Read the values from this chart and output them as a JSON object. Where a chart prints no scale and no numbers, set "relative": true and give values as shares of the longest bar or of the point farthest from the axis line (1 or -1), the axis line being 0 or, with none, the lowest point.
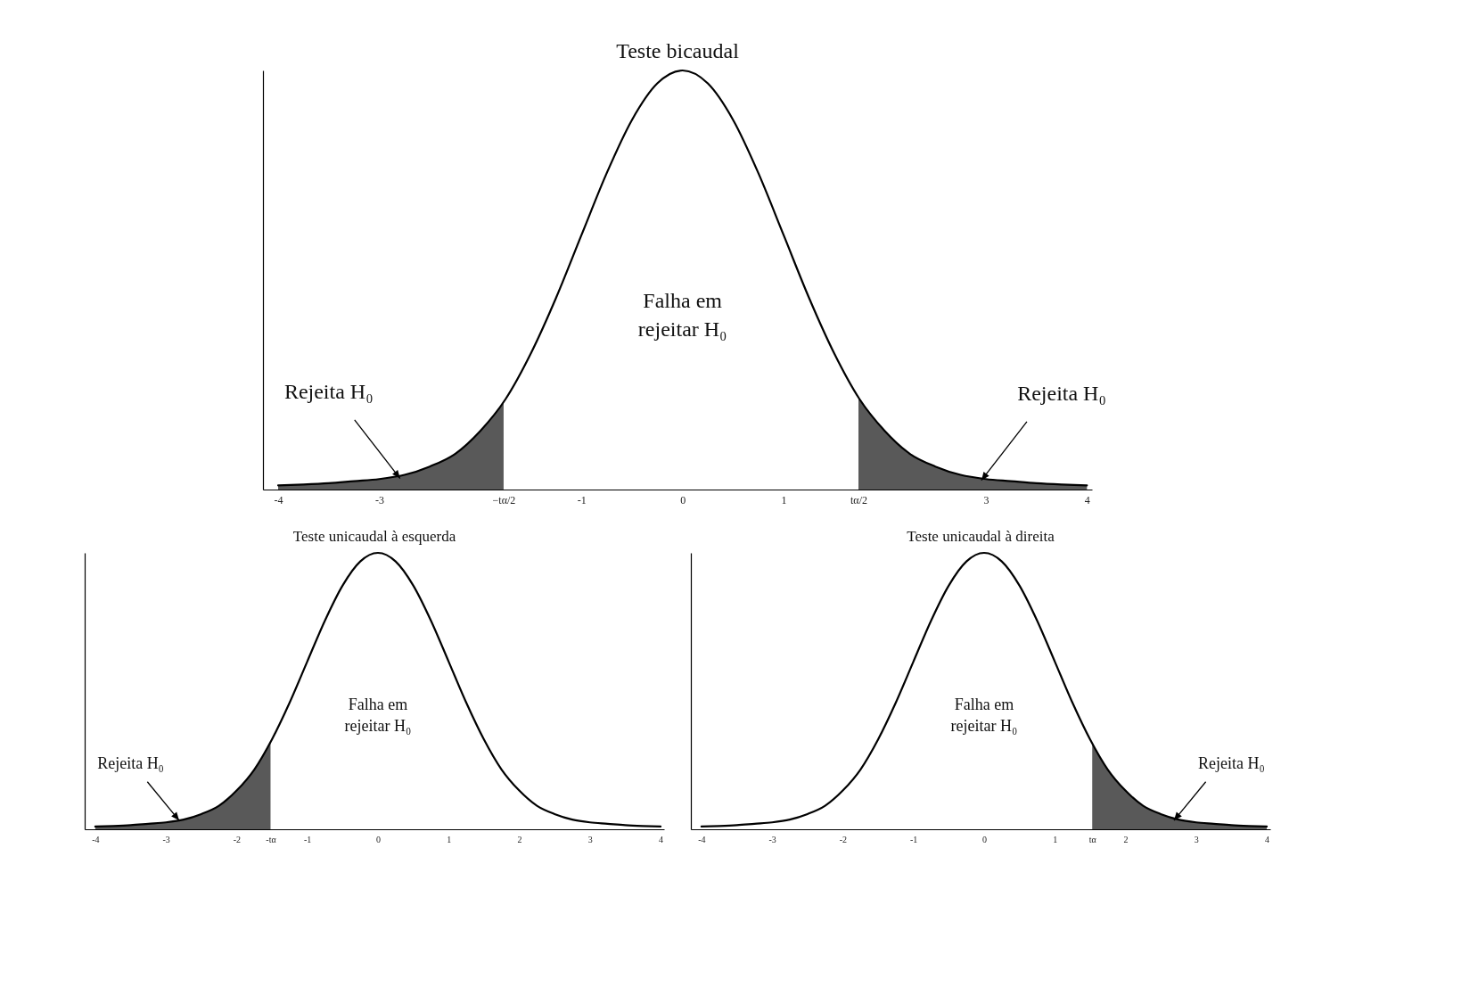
{
  "chart_data": [
    {
      "type": "line",
      "title": "Teste bicaudal",
      "relative": true,
      "xlim": [
        -4.15,
        4.05
      ],
      "grid": false,
      "xticks": [
        -4,
        -3,
        {
          "value": -1.77,
          "label": "−tα/2"
        },
        -1,
        0,
        1,
        {
          "value": 1.74,
          "label": "tα/2"
        },
        3,
        4
      ],
      "x": [
        -4,
        -3.75,
        -3.5,
        -3.25,
        -3,
        -2.75,
        -2.5,
        -2.25,
        -2,
        -1.75,
        -1.5,
        -1.25,
        -1,
        -0.75,
        -0.5,
        -0.25,
        0,
        0.25,
        0.5,
        0.75,
        1,
        1.25,
        1.5,
        1.75,
        2,
        2.25,
        2.5,
        2.75,
        3,
        3.25,
        3.5,
        3.75,
        4
      ],
      "series": [
        {
          "type": "area",
          "color": "#595959",
          "x": [
            -4,
            -3.75,
            -3.5,
            -3.25,
            -3,
            -2.75,
            -2.5,
            -2.25,
            -2,
            -1.77
          ],
          "values": [
            0.01,
            0.012,
            0.015,
            0.02,
            0.025,
            0.035,
            0.055,
            0.085,
            0.14,
            0.21
          ]
        },
        {
          "type": "area",
          "color": "#595959",
          "x": [
            1.74,
            2,
            2.25,
            2.5,
            2.75,
            3,
            3.25,
            3.5,
            3.75,
            4
          ],
          "values": [
            0.22,
            0.14,
            0.085,
            0.055,
            0.035,
            0.025,
            0.02,
            0.015,
            0.012,
            0.01
          ]
        },
        {
          "type": "line",
          "color": "#000000",
          "values": [
            0.01,
            0.012,
            0.015,
            0.02,
            0.025,
            0.035,
            0.055,
            0.085,
            0.14,
            0.216,
            0.325,
            0.458,
            0.607,
            0.755,
            0.882,
            0.969,
            1,
            0.969,
            0.882,
            0.755,
            0.607,
            0.458,
            0.325,
            0.216,
            0.14,
            0.085,
            0.055,
            0.035,
            0.025,
            0.02,
            0.015,
            0.012,
            0.01
          ]
        }
      ],
      "annotations": [
        "Falha em rejeitar H₀",
        "Rejeita H₀",
        "Rejeita H₀"
      ]
    },
    {
      "type": "line",
      "title": "Teste unicaudal à esquerda",
      "relative": true,
      "xlim": [
        -4.15,
        4.05
      ],
      "grid": false,
      "xticks": [
        -4,
        -3,
        -2,
        {
          "value": -1.52,
          "label": "-tα"
        },
        -1,
        0,
        1,
        2,
        3,
        4
      ],
      "x": [
        -4,
        -3.75,
        -3.5,
        -3.25,
        -3,
        -2.75,
        -2.5,
        -2.25,
        -2,
        -1.75,
        -1.5,
        -1.25,
        -1,
        -0.75,
        -0.5,
        -0.25,
        0,
        0.25,
        0.5,
        0.75,
        1,
        1.25,
        1.5,
        1.75,
        2,
        2.25,
        2.5,
        2.75,
        3,
        3.25,
        3.5,
        3.75,
        4
      ],
      "series": [
        {
          "type": "area",
          "color": "#595959",
          "x": [
            -4,
            -3.75,
            -3.5,
            -3.25,
            -3,
            -2.75,
            -2.5,
            -2.25,
            -2,
            -1.75,
            -1.52
          ],
          "values": [
            0.01,
            0.012,
            0.015,
            0.02,
            0.025,
            0.035,
            0.055,
            0.085,
            0.14,
            0.216,
            0.32
          ]
        },
        {
          "type": "line",
          "color": "#000000",
          "values": [
            0.01,
            0.012,
            0.015,
            0.02,
            0.025,
            0.035,
            0.055,
            0.085,
            0.14,
            0.216,
            0.325,
            0.458,
            0.607,
            0.755,
            0.882,
            0.969,
            1,
            0.969,
            0.882,
            0.755,
            0.607,
            0.458,
            0.325,
            0.216,
            0.14,
            0.085,
            0.055,
            0.035,
            0.025,
            0.02,
            0.015,
            0.012,
            0.01
          ]
        }
      ],
      "annotations": [
        "Falha em rejeitar H₀",
        "Rejeita H₀"
      ]
    },
    {
      "type": "line",
      "title": "Teste unicaudal à direita",
      "relative": true,
      "xlim": [
        -4.15,
        4.05
      ],
      "grid": false,
      "xticks": [
        -4,
        -3,
        -2,
        -1,
        0,
        1,
        {
          "value": 1.53,
          "label": "tα"
        },
        2,
        3,
        4
      ],
      "x": [
        -4,
        -3.75,
        -3.5,
        -3.25,
        -3,
        -2.75,
        -2.5,
        -2.25,
        -2,
        -1.75,
        -1.5,
        -1.25,
        -1,
        -0.75,
        -0.5,
        -0.25,
        0,
        0.25,
        0.5,
        0.75,
        1,
        1.25,
        1.5,
        1.75,
        2,
        2.25,
        2.5,
        2.75,
        3,
        3.25,
        3.5,
        3.75,
        4
      ],
      "series": [
        {
          "type": "area",
          "color": "#595959",
          "x": [
            1.53,
            1.75,
            2,
            2.25,
            2.5,
            2.75,
            3,
            3.25,
            3.5,
            3.75,
            4
          ],
          "values": [
            0.31,
            0.216,
            0.14,
            0.085,
            0.055,
            0.035,
            0.025,
            0.02,
            0.015,
            0.012,
            0.01
          ]
        },
        {
          "type": "line",
          "color": "#000000",
          "values": [
            0.01,
            0.012,
            0.015,
            0.02,
            0.025,
            0.035,
            0.055,
            0.085,
            0.14,
            0.216,
            0.325,
            0.458,
            0.607,
            0.755,
            0.882,
            0.969,
            1,
            0.969,
            0.882,
            0.755,
            0.607,
            0.458,
            0.325,
            0.216,
            0.14,
            0.085,
            0.055,
            0.035,
            0.025,
            0.02,
            0.015,
            0.012,
            0.01
          ]
        }
      ],
      "annotations": [
        "Falha em rejeitar H₀",
        "Rejeita H₀"
      ]
    }
  ]
}
